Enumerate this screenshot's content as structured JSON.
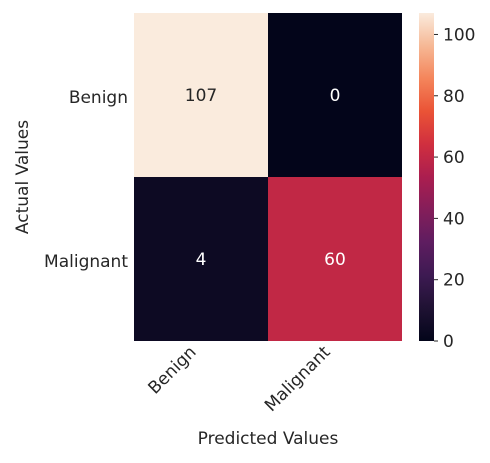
{
  "chart_data": {
    "type": "heatmap",
    "title": "",
    "xlabel": "Predicted Values",
    "ylabel": "Actual Values",
    "x_categories": [
      "Benign",
      "Malignant"
    ],
    "y_categories": [
      "Benign",
      "Malignant"
    ],
    "values": [
      [
        107,
        0
      ],
      [
        4,
        60
      ]
    ],
    "colormap": "rocket",
    "colorbar": {
      "min": 0,
      "max": 107,
      "ticks": [
        "0",
        "20",
        "40",
        "60",
        "80",
        "100"
      ]
    },
    "cell_label_colors": {
      "dark": "#262626",
      "light": "#ffffff"
    }
  }
}
